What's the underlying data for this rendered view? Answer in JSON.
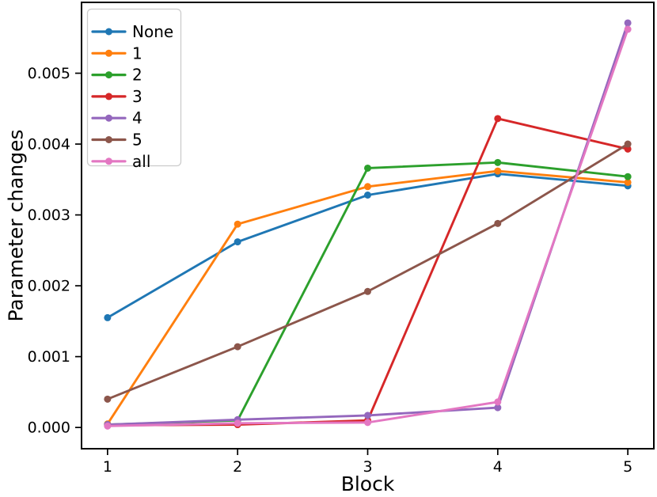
{
  "figure": {
    "background": "#ffffff",
    "spine_color": "#000000",
    "tick_color": "#000000",
    "text_color": "#000000",
    "legend_border_color": "#cccccc",
    "legend_background": "#ffffff"
  },
  "chart_data": {
    "type": "line",
    "title": "",
    "xlabel": "Block",
    "ylabel": "Parameter changes",
    "x": [
      1,
      2,
      3,
      4,
      5
    ],
    "xlim": [
      0.8,
      5.2
    ],
    "ylim": [
      -0.0003,
      0.006
    ],
    "xticks": [
      1,
      2,
      3,
      4,
      5
    ],
    "xtick_labels": [
      "1",
      "2",
      "3",
      "4",
      "5"
    ],
    "yticks": [
      0.0,
      0.001,
      0.002,
      0.003,
      0.004,
      0.005
    ],
    "ytick_labels": [
      "0.000",
      "0.001",
      "0.002",
      "0.003",
      "0.004",
      "0.005"
    ],
    "grid": false,
    "legend_position": "upper left",
    "marker": "circle",
    "series": [
      {
        "name": "None",
        "color": "#1f77b4",
        "values": [
          0.00155,
          0.00262,
          0.00328,
          0.00358,
          0.00341
        ]
      },
      {
        "name": "1",
        "color": "#ff7f0e",
        "values": [
          5e-05,
          0.00287,
          0.0034,
          0.00362,
          0.00346
        ]
      },
      {
        "name": "2",
        "color": "#2ca02c",
        "values": [
          4e-05,
          0.0001,
          0.00366,
          0.00374,
          0.00354
        ]
      },
      {
        "name": "3",
        "color": "#d62728",
        "values": [
          3e-05,
          4e-05,
          0.0001,
          0.00436,
          0.00393
        ]
      },
      {
        "name": "4",
        "color": "#9467bd",
        "values": [
          4e-05,
          0.00011,
          0.00017,
          0.00028,
          0.00571
        ]
      },
      {
        "name": "5",
        "color": "#8c564b",
        "values": [
          0.0004,
          0.00114,
          0.00192,
          0.00288,
          0.004
        ]
      },
      {
        "name": "all",
        "color": "#e377c2",
        "values": [
          2e-05,
          6e-05,
          7e-05,
          0.00036,
          0.00562
        ]
      }
    ]
  }
}
